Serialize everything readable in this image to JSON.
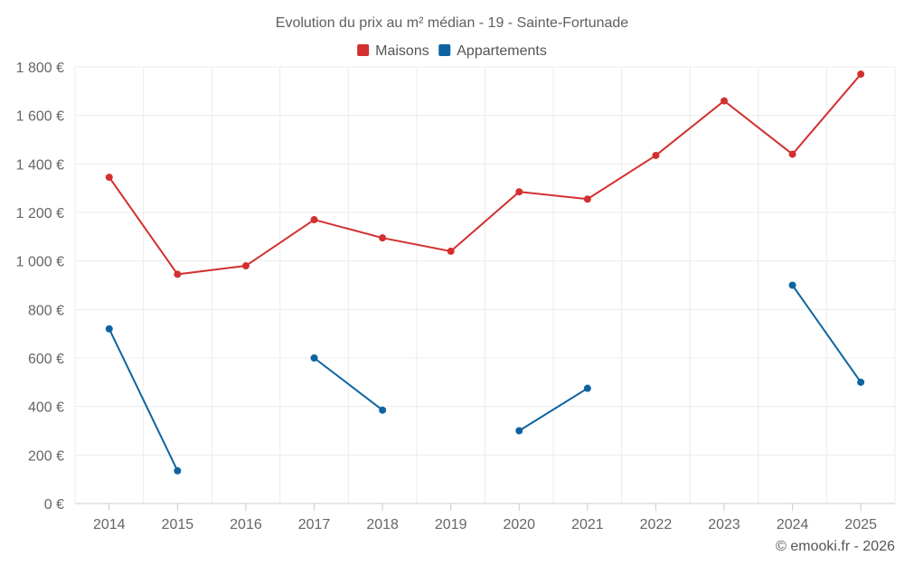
{
  "chart_data": {
    "type": "line",
    "title": "Evolution du prix au m² médian - 19 - Sainte-Fortunade",
    "categories": [
      "2014",
      "2015",
      "2016",
      "2017",
      "2018",
      "2019",
      "2020",
      "2021",
      "2022",
      "2023",
      "2024",
      "2025"
    ],
    "ylim": [
      0,
      1800
    ],
    "yticks": [
      0,
      200,
      400,
      600,
      800,
      1000,
      1200,
      1400,
      1600,
      1800
    ],
    "ytick_labels": [
      "0 €",
      "200 €",
      "400 €",
      "600 €",
      "800 €",
      "1 000 €",
      "1 200 €",
      "1 400 €",
      "1 600 €",
      "1 800 €"
    ],
    "grid": true,
    "legend_position": "top-center",
    "series": [
      {
        "name": "Maisons",
        "color": "#d32f2f",
        "values": [
          1345,
          945,
          980,
          1170,
          1095,
          1040,
          1285,
          1255,
          1435,
          1660,
          1440,
          1770
        ]
      },
      {
        "name": "Appartements",
        "color": "#0d64a0",
        "values": [
          720,
          135,
          null,
          600,
          385,
          null,
          300,
          475,
          null,
          null,
          900,
          500
        ]
      }
    ]
  },
  "credit": "© emooki.fr - 2026"
}
